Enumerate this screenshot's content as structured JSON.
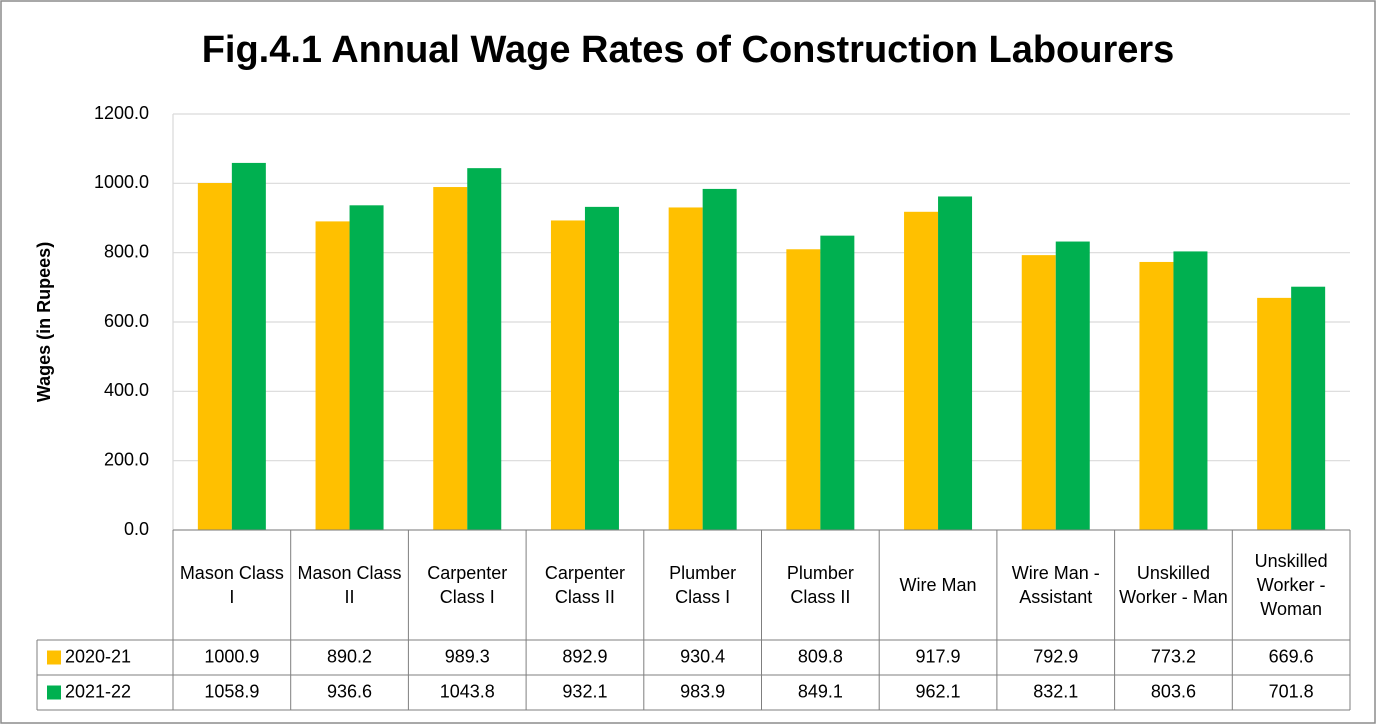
{
  "chart_data": {
    "type": "bar",
    "title": "Fig.4.1  Annual Wage Rates of Construction Labourers",
    "y_label": "Wages (in Rupees)",
    "categories": [
      "Mason Class I",
      "Mason Class II",
      "Carpenter Class I",
      "Carpenter Class II",
      "Plumber Class I",
      "Plumber Class II",
      "Wire Man",
      "Wire Man - Assistant",
      "Unskilled Worker - Man",
      "Unskilled Worker - Woman"
    ],
    "series": [
      {
        "name": "2020-21",
        "color": "#FFC000",
        "values": [
          1000.9,
          890.2,
          989.3,
          892.9,
          930.4,
          809.8,
          917.9,
          792.9,
          773.2,
          669.6
        ]
      },
      {
        "name": "2021-22",
        "color": "#00B050",
        "values": [
          1058.9,
          936.6,
          1043.8,
          932.1,
          983.9,
          849.1,
          962.1,
          832.1,
          803.6,
          701.8
        ]
      }
    ],
    "ylim": [
      0,
      1200
    ],
    "yticks": [
      {
        "value": 0,
        "label": "0.0"
      },
      {
        "value": 200,
        "label": "200.0"
      },
      {
        "value": 400,
        "label": "400.0"
      },
      {
        "value": 600,
        "label": "600.0"
      },
      {
        "value": 800,
        "label": "800.0"
      },
      {
        "value": 1000,
        "label": "1000.0"
      },
      {
        "value": 1200,
        "label": "1200.0"
      }
    ],
    "grid": true,
    "data_table": true
  }
}
